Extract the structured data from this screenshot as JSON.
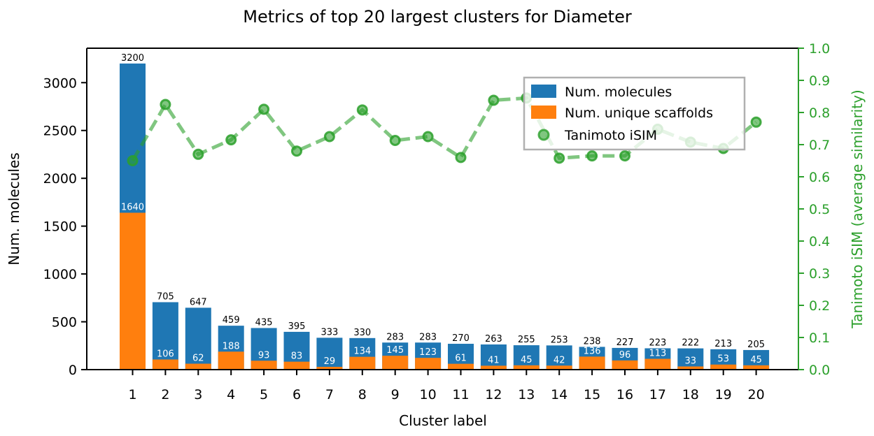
{
  "chart_data": {
    "type": "bar",
    "title": "Metrics of top 20 largest clusters for Diameter",
    "xlabel": "Cluster label",
    "ylabel": "Num. molecules",
    "ylabel_right": "Tanimoto iSIM (average similarity)",
    "categories": [
      "1",
      "2",
      "3",
      "4",
      "5",
      "6",
      "7",
      "8",
      "9",
      "10",
      "11",
      "12",
      "13",
      "14",
      "15",
      "16",
      "17",
      "18",
      "19",
      "20"
    ],
    "ylim": [
      0,
      3360
    ],
    "yticks": [
      0,
      500,
      1000,
      1500,
      2000,
      2500,
      3000
    ],
    "ylim_right": [
      0,
      1.0
    ],
    "yticks_right": [
      "0.0",
      "0.1",
      "0.2",
      "0.3",
      "0.4",
      "0.5",
      "0.6",
      "0.7",
      "0.8",
      "0.9",
      "1.0"
    ],
    "series": [
      {
        "name": "Num. molecules",
        "kind": "bar",
        "color": "#1f77b4",
        "values": [
          3200,
          705,
          647,
          459,
          435,
          395,
          333,
          330,
          283,
          283,
          270,
          263,
          255,
          253,
          238,
          227,
          223,
          222,
          213,
          205
        ]
      },
      {
        "name": "Num. unique scaffolds",
        "kind": "bar",
        "color": "#ff7f0e",
        "values": [
          1640,
          106,
          62,
          188,
          93,
          83,
          29,
          134,
          145,
          123,
          61,
          41,
          45,
          42,
          136,
          96,
          113,
          33,
          53,
          45
        ]
      },
      {
        "name": "Tanimoto iSIM",
        "kind": "line",
        "axis": "right",
        "color": "#2ca02c",
        "values": [
          0.65,
          0.825,
          0.67,
          0.715,
          0.81,
          0.68,
          0.725,
          0.808,
          0.713,
          0.725,
          0.66,
          0.838,
          0.845,
          0.658,
          0.665,
          0.665,
          0.748,
          0.708,
          0.688,
          0.77
        ]
      }
    ],
    "legend_position": "upper-right"
  }
}
